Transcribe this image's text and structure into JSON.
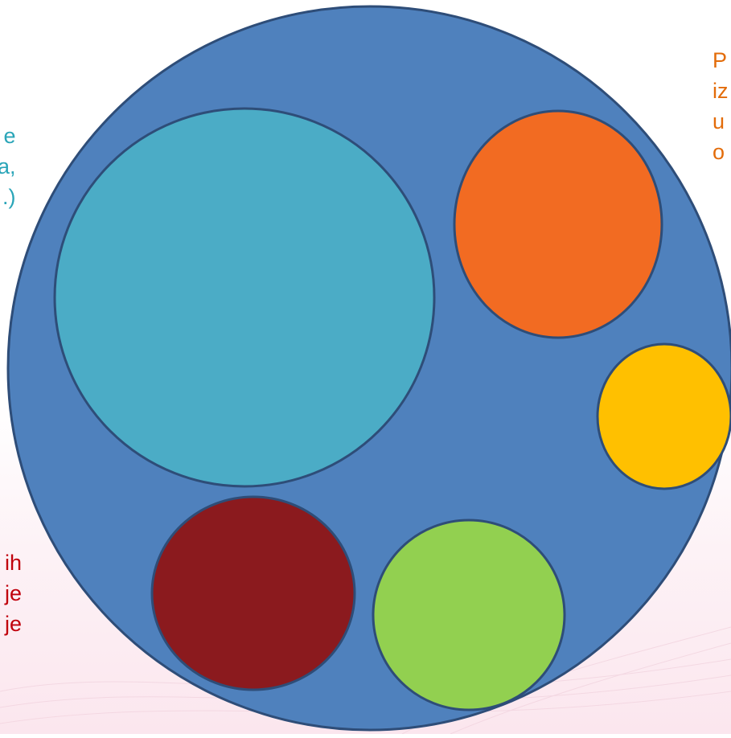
{
  "texts": {
    "left_top": "e\na,\n.)",
    "left_bottom": "ih\nje\nje",
    "right_top": "P\niz\nu\no"
  },
  "colors": {
    "outer_circle": "#4f81bd",
    "circle_teal": "#4bacc6",
    "circle_orange": "#f26b22",
    "circle_yellow": "#ffc000",
    "circle_darkred": "#8b1a1e",
    "circle_green": "#92d050",
    "stroke": "#2e4d78",
    "text_teal": "#2aa5b8",
    "text_red": "#c0000c",
    "text_orange": "#e36c0a"
  }
}
